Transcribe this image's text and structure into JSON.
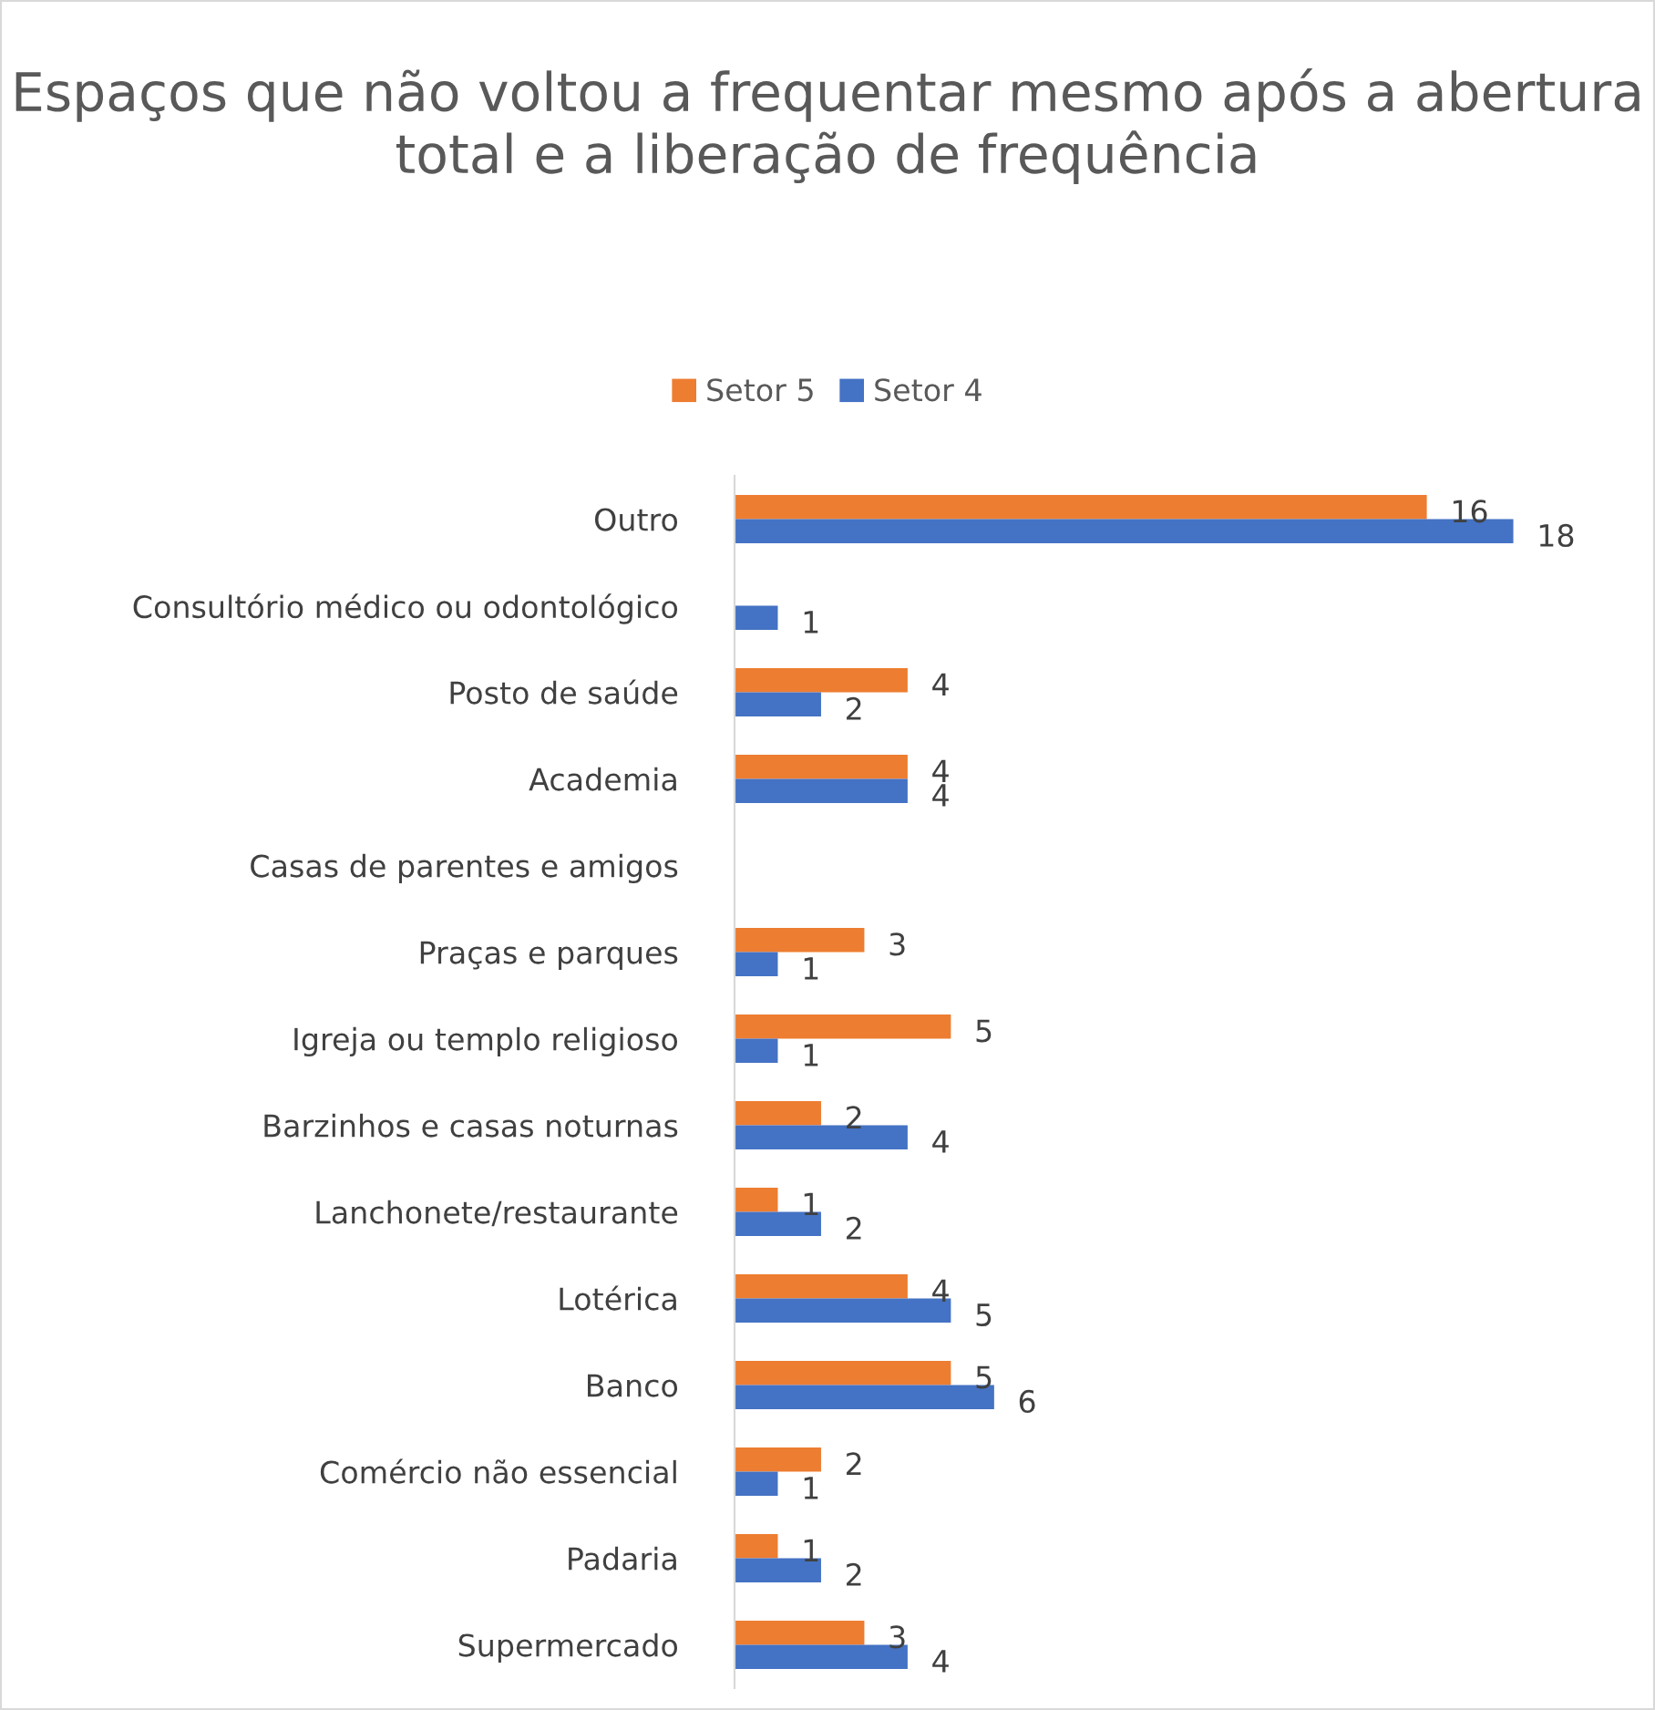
{
  "chart_data": {
    "type": "bar",
    "orientation": "horizontal",
    "title": "Espaços que não voltou a frequentar mesmo após a abertura total e a liberação de frequência",
    "categories": [
      "Outro",
      "Consultório médico ou odontológico",
      "Posto de saúde",
      "Academia",
      "Casas de parentes e amigos",
      "Praças e parques",
      "Igreja ou templo religioso",
      "Barzinhos e casas noturnas",
      "Lanchonete/restaurante",
      "Lotérica",
      "Banco",
      "Comércio não essencial",
      "Padaria",
      "Supermercado"
    ],
    "series": [
      {
        "name": "Setor 5",
        "color": "#ed7d31",
        "values": [
          16,
          null,
          4,
          4,
          null,
          3,
          5,
          2,
          1,
          4,
          5,
          2,
          1,
          3
        ]
      },
      {
        "name": "Setor 4",
        "color": "#4472c4",
        "values": [
          18,
          1,
          2,
          4,
          null,
          1,
          1,
          4,
          2,
          5,
          6,
          1,
          2,
          4
        ]
      }
    ],
    "data_labels": true,
    "legend": "top",
    "grid": false
  }
}
